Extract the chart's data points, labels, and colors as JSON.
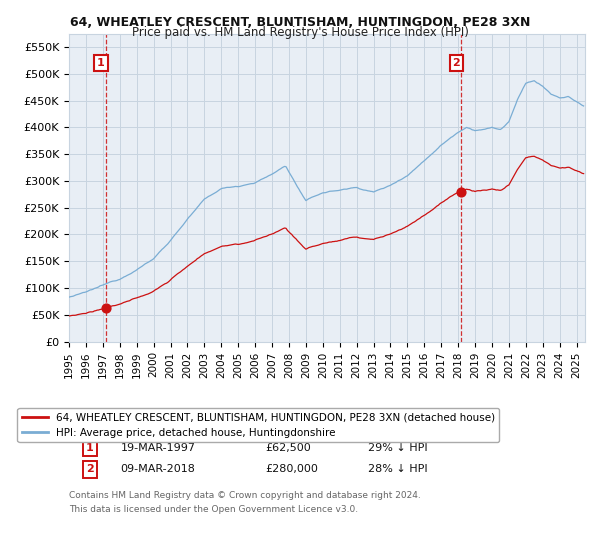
{
  "title": "64, WHEATLEY CRESCENT, BLUNTISHAM, HUNTINGDON, PE28 3XN",
  "subtitle": "Price paid vs. HM Land Registry's House Price Index (HPI)",
  "ylabel_ticks": [
    "£0",
    "£50K",
    "£100K",
    "£150K",
    "£200K",
    "£250K",
    "£300K",
    "£350K",
    "£400K",
    "£450K",
    "£500K",
    "£550K"
  ],
  "ytick_values": [
    0,
    50000,
    100000,
    150000,
    200000,
    250000,
    300000,
    350000,
    400000,
    450000,
    500000,
    550000
  ],
  "sale1_date": "19-MAR-1997",
  "sale1_price": 62500,
  "sale1_x": 1997.19,
  "sale2_date": "09-MAR-2018",
  "sale2_price": 280000,
  "sale2_x": 2018.19,
  "hpi_color": "#7aadd4",
  "price_color": "#cc1111",
  "box_color": "#cc1111",
  "legend1": "64, WHEATLEY CRESCENT, BLUNTISHAM, HUNTINGDON, PE28 3XN (detached house)",
  "legend2": "HPI: Average price, detached house, Huntingdonshire",
  "footnote1": "Contains HM Land Registry data © Crown copyright and database right 2024.",
  "footnote2": "This data is licensed under the Open Government Licence v3.0.",
  "xmin": 1995.0,
  "xmax": 2025.5,
  "ymin": 0,
  "ymax": 575000,
  "plot_bg_color": "#e8eef5",
  "background_color": "#ffffff",
  "grid_color": "#c8d4e0"
}
